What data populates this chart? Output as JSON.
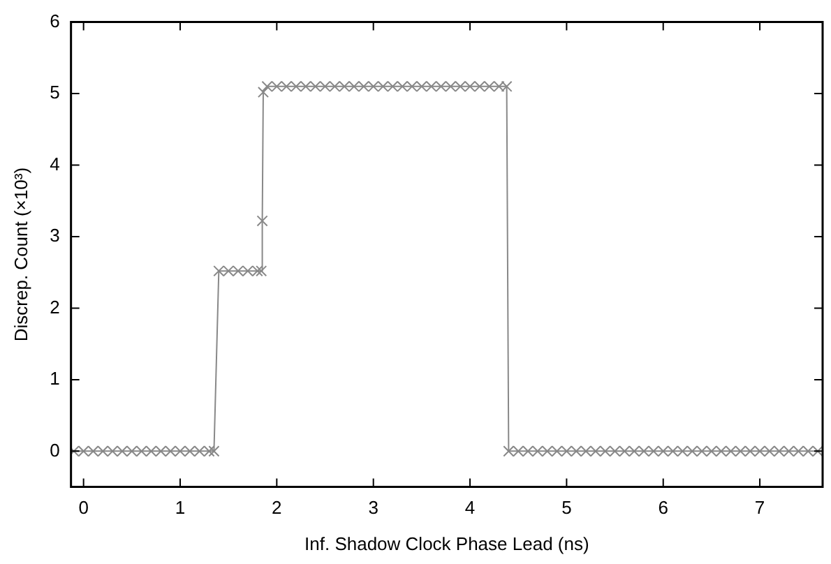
{
  "chart_data": {
    "type": "line",
    "xlabel": "Inf. Shadow Clock Phase Lead (ns)",
    "ylabel": "Discrep. Count (×10³)",
    "xlim": [
      -0.13,
      7.65
    ],
    "ylim": [
      -0.5,
      6
    ],
    "xticks": [
      0,
      1,
      2,
      3,
      4,
      5,
      6,
      7
    ],
    "yticks": [
      0,
      1,
      2,
      3,
      4,
      5,
      6
    ],
    "grid": false,
    "legend": false,
    "marker": "cross",
    "line_style": "solid",
    "series": [
      {
        "color": "#888888",
        "x": [
          -0.1,
          0,
          0.1,
          0.2,
          0.3,
          0.4,
          0.5,
          0.6,
          0.7,
          0.8,
          0.9,
          1.0,
          1.1,
          1.2,
          1.3,
          1.35,
          1.4,
          1.5,
          1.6,
          1.7,
          1.8,
          1.84,
          1.85,
          1.86,
          1.9,
          2.0,
          2.1,
          2.2,
          2.3,
          2.4,
          2.5,
          2.6,
          2.7,
          2.8,
          2.9,
          3.0,
          3.1,
          3.2,
          3.3,
          3.4,
          3.5,
          3.6,
          3.7,
          3.8,
          3.9,
          4.0,
          4.1,
          4.2,
          4.3,
          4.38,
          4.4,
          4.5,
          4.6,
          4.7,
          4.8,
          4.9,
          5.0,
          5.1,
          5.2,
          5.3,
          5.4,
          5.5,
          5.6,
          5.7,
          5.8,
          5.9,
          6.0,
          6.1,
          6.2,
          6.3,
          6.4,
          6.5,
          6.6,
          6.7,
          6.8,
          6.9,
          7.0,
          7.1,
          7.2,
          7.3,
          7.4,
          7.5,
          7.6
        ],
        "values": [
          0,
          0,
          0,
          0,
          0,
          0,
          0,
          0,
          0,
          0,
          0,
          0,
          0,
          0,
          0,
          0,
          2.52,
          2.52,
          2.52,
          2.52,
          2.52,
          2.52,
          3.22,
          5.02,
          5.1,
          5.1,
          5.1,
          5.1,
          5.1,
          5.1,
          5.1,
          5.1,
          5.1,
          5.1,
          5.1,
          5.1,
          5.1,
          5.1,
          5.1,
          5.1,
          5.1,
          5.1,
          5.1,
          5.1,
          5.1,
          5.1,
          5.1,
          5.1,
          5.1,
          5.1,
          0,
          0,
          0,
          0,
          0,
          0,
          0,
          0,
          0,
          0,
          0,
          0,
          0,
          0,
          0,
          0,
          0,
          0,
          0,
          0,
          0,
          0,
          0,
          0,
          0,
          0,
          0,
          0,
          0,
          0,
          0,
          0,
          0
        ]
      }
    ]
  }
}
